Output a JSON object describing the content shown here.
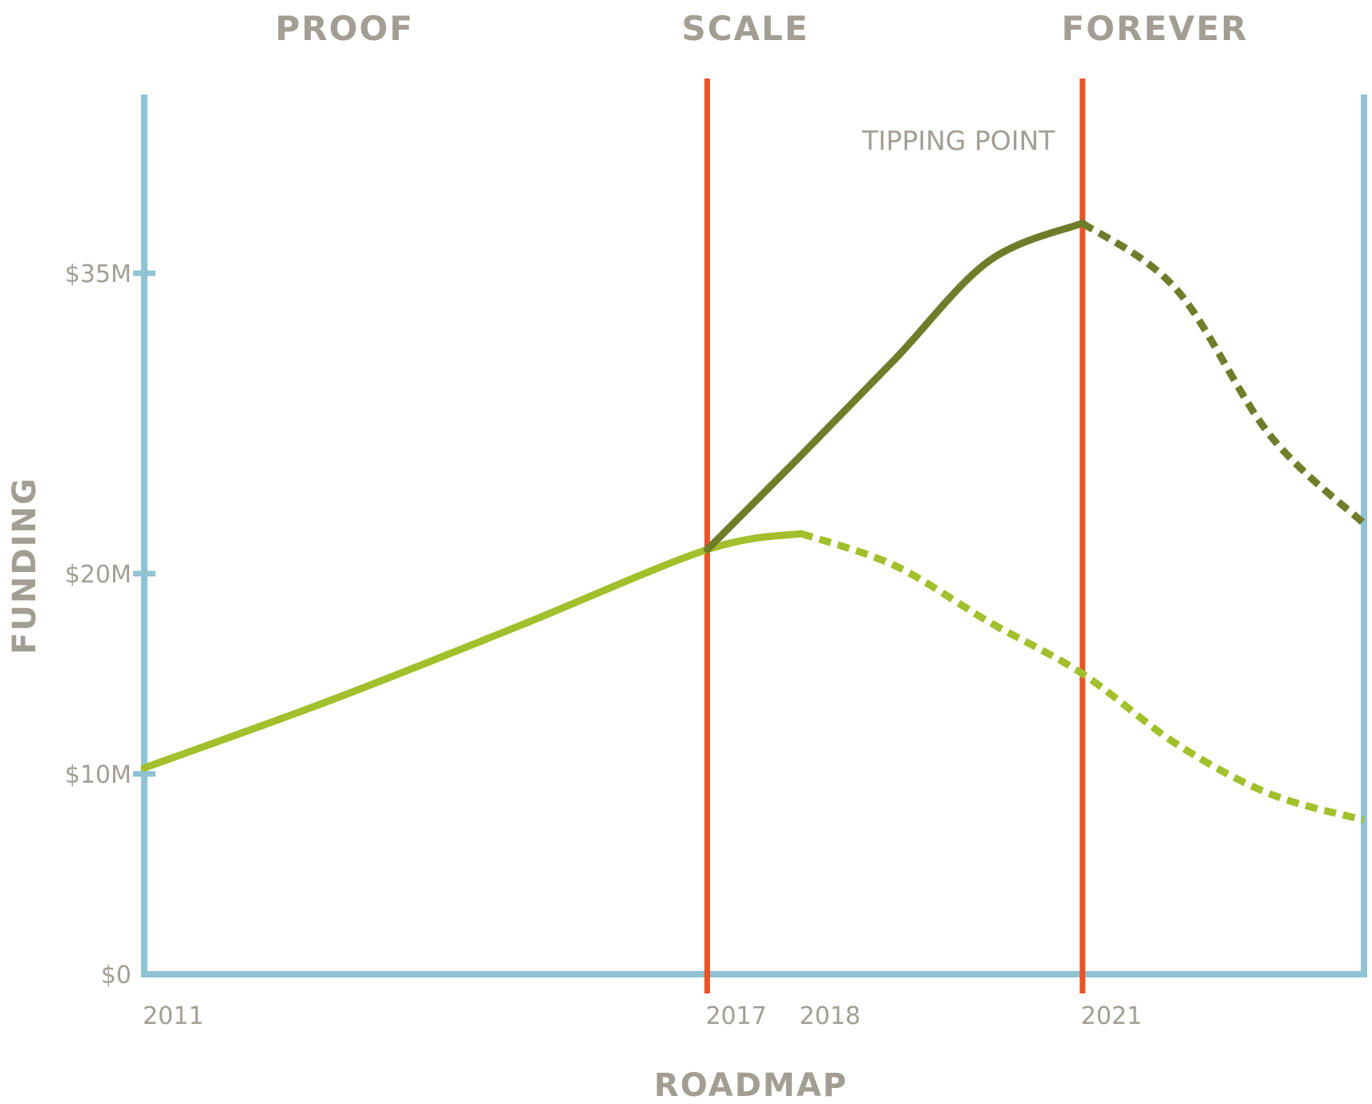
{
  "chart_data": {
    "type": "line",
    "xlabel": "ROADMAP",
    "ylabel": "FUNDING",
    "phases": [
      "PROOF",
      "SCALE",
      "FOREVER"
    ],
    "annotation": "TIPPING POINT",
    "x_ticks": [
      "2011",
      "2017",
      "2018",
      "2021"
    ],
    "y_ticks": [
      "$0",
      "$10M",
      "$20M",
      "$35M"
    ],
    "y_tick_values": [
      0,
      10,
      20,
      35
    ],
    "ylim": [
      0,
      40
    ],
    "xlim": [
      2011,
      2024
    ],
    "milestones": [
      2017,
      2021
    ],
    "grid": false,
    "colors": {
      "axis": "#8fc3d4",
      "milestone": "#e8542a",
      "baseline_series": "#a2bf2c",
      "scale_series": "#6f7d2b",
      "text": "#a39e93"
    },
    "series": [
      {
        "segments": [
          {
            "style": "solid",
            "points": [
              [
                2011,
                10.3
              ],
              [
                2013,
                13.7
              ],
              [
                2015,
                17.4
              ],
              [
                2017,
                21.2
              ],
              [
                2018,
                22.0
              ]
            ]
          },
          {
            "style": "dashed",
            "points": [
              [
                2018,
                22.0
              ],
              [
                2019,
                20.4
              ],
              [
                2020,
                17.6
              ],
              [
                2021,
                15.0
              ],
              [
                2022,
                11.5
              ],
              [
                2023,
                9.0
              ],
              [
                2024,
                7.7
              ]
            ]
          }
        ]
      },
      {
        "segments": [
          {
            "style": "solid",
            "points": [
              [
                2017,
                21.2
              ],
              [
                2018,
                25.9
              ],
              [
                2019,
                30.7
              ],
              [
                2020,
                35.6
              ],
              [
                2021,
                37.5
              ]
            ]
          },
          {
            "style": "dashed",
            "points": [
              [
                2021,
                37.5
              ],
              [
                2022,
                34.2
              ],
              [
                2023,
                26.9
              ],
              [
                2024,
                22.5
              ]
            ]
          }
        ]
      }
    ]
  }
}
